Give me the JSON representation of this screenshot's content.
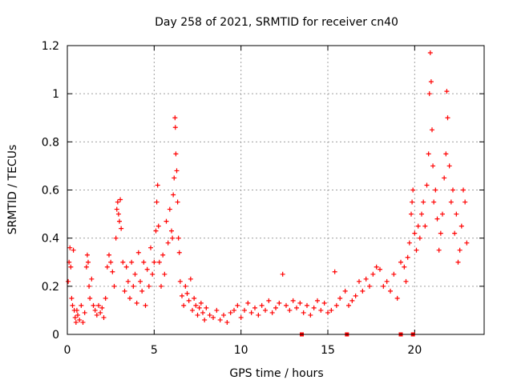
{
  "chart_data": {
    "type": "scatter",
    "title": "Day 258 of 2021, SRMTID for receiver cn40",
    "xlabel": "GPS time / hours",
    "ylabel": "SRMTID / TECUs",
    "xlim": [
      0,
      24
    ],
    "ylim": [
      0,
      1.2
    ],
    "grid": true,
    "legend": "none",
    "marker": "+",
    "x_ticks": [
      0,
      5,
      10,
      15,
      20
    ],
    "x_tick_labels": [
      "0",
      "5",
      "10",
      "15",
      "20"
    ],
    "y_ticks": [
      0,
      0.2,
      0.4,
      0.6,
      0.8,
      1,
      1.2
    ],
    "y_tick_labels": [
      "0",
      "0.2",
      "0.4",
      "0.6",
      "0.8",
      "1",
      "1.2"
    ],
    "series": [
      {
        "name": "SRMTID",
        "color": "#ff0000",
        "points": [
          [
            0.05,
            0.22
          ],
          [
            0.1,
            0.3
          ],
          [
            0.15,
            0.36
          ],
          [
            0.2,
            0.28
          ],
          [
            0.25,
            0.15
          ],
          [
            0.3,
            0.12
          ],
          [
            0.35,
            0.35
          ],
          [
            0.4,
            0.1
          ],
          [
            0.45,
            0.07
          ],
          [
            0.5,
            0.05
          ],
          [
            0.55,
            0.1
          ],
          [
            0.6,
            0.08
          ],
          [
            0.7,
            0.06
          ],
          [
            0.8,
            0.12
          ],
          [
            0.9,
            0.05
          ],
          [
            1.0,
            0.09
          ],
          [
            1.1,
            0.28
          ],
          [
            1.15,
            0.33
          ],
          [
            1.2,
            0.3
          ],
          [
            1.25,
            0.2
          ],
          [
            1.3,
            0.15
          ],
          [
            1.4,
            0.23
          ],
          [
            1.5,
            0.12
          ],
          [
            1.6,
            0.1
          ],
          [
            1.7,
            0.08
          ],
          [
            1.8,
            0.12
          ],
          [
            1.9,
            0.09
          ],
          [
            2.0,
            0.11
          ],
          [
            2.1,
            0.07
          ],
          [
            2.2,
            0.15
          ],
          [
            2.3,
            0.28
          ],
          [
            2.4,
            0.33
          ],
          [
            2.5,
            0.3
          ],
          [
            2.6,
            0.26
          ],
          [
            2.7,
            0.2
          ],
          [
            2.8,
            0.4
          ],
          [
            2.85,
            0.52
          ],
          [
            2.9,
            0.55
          ],
          [
            2.95,
            0.5
          ],
          [
            3.0,
            0.47
          ],
          [
            3.05,
            0.56
          ],
          [
            3.1,
            0.44
          ],
          [
            3.2,
            0.3
          ],
          [
            3.3,
            0.18
          ],
          [
            3.4,
            0.28
          ],
          [
            3.5,
            0.22
          ],
          [
            3.6,
            0.15
          ],
          [
            3.7,
            0.3
          ],
          [
            3.8,
            0.2
          ],
          [
            3.9,
            0.25
          ],
          [
            4.0,
            0.13
          ],
          [
            4.1,
            0.34
          ],
          [
            4.2,
            0.22
          ],
          [
            4.3,
            0.18
          ],
          [
            4.4,
            0.3
          ],
          [
            4.5,
            0.12
          ],
          [
            4.6,
            0.27
          ],
          [
            4.7,
            0.2
          ],
          [
            4.8,
            0.36
          ],
          [
            4.9,
            0.25
          ],
          [
            5.0,
            0.3
          ],
          [
            5.1,
            0.43
          ],
          [
            5.15,
            0.55
          ],
          [
            5.2,
            0.62
          ],
          [
            5.25,
            0.45
          ],
          [
            5.3,
            0.3
          ],
          [
            5.4,
            0.2
          ],
          [
            5.5,
            0.33
          ],
          [
            5.6,
            0.25
          ],
          [
            5.7,
            0.47
          ],
          [
            5.8,
            0.38
          ],
          [
            5.9,
            0.52
          ],
          [
            6.0,
            0.43
          ],
          [
            6.05,
            0.4
          ],
          [
            6.1,
            0.58
          ],
          [
            6.15,
            0.65
          ],
          [
            6.2,
            0.9
          ],
          [
            6.22,
            0.86
          ],
          [
            6.25,
            0.75
          ],
          [
            6.3,
            0.68
          ],
          [
            6.35,
            0.55
          ],
          [
            6.4,
            0.4
          ],
          [
            6.45,
            0.34
          ],
          [
            6.5,
            0.22
          ],
          [
            6.6,
            0.16
          ],
          [
            6.7,
            0.12
          ],
          [
            6.8,
            0.2
          ],
          [
            6.9,
            0.17
          ],
          [
            7.0,
            0.14
          ],
          [
            7.1,
            0.23
          ],
          [
            7.2,
            0.1
          ],
          [
            7.3,
            0.15
          ],
          [
            7.4,
            0.12
          ],
          [
            7.5,
            0.08
          ],
          [
            7.6,
            0.11
          ],
          [
            7.7,
            0.13
          ],
          [
            7.8,
            0.09
          ],
          [
            7.9,
            0.06
          ],
          [
            8.0,
            0.11
          ],
          [
            8.2,
            0.08
          ],
          [
            8.4,
            0.07
          ],
          [
            8.6,
            0.1
          ],
          [
            8.8,
            0.06
          ],
          [
            9.0,
            0.08
          ],
          [
            9.2,
            0.05
          ],
          [
            9.4,
            0.09
          ],
          [
            9.6,
            0.1
          ],
          [
            9.8,
            0.12
          ],
          [
            10.0,
            0.07
          ],
          [
            10.2,
            0.1
          ],
          [
            10.4,
            0.13
          ],
          [
            10.6,
            0.09
          ],
          [
            10.8,
            0.11
          ],
          [
            11.0,
            0.08
          ],
          [
            11.2,
            0.12
          ],
          [
            11.4,
            0.1
          ],
          [
            11.6,
            0.14
          ],
          [
            11.8,
            0.09
          ],
          [
            12.0,
            0.11
          ],
          [
            12.2,
            0.13
          ],
          [
            12.4,
            0.25
          ],
          [
            12.6,
            0.12
          ],
          [
            12.8,
            0.1
          ],
          [
            13.0,
            0.14
          ],
          [
            13.2,
            0.11
          ],
          [
            13.4,
            0.13
          ],
          [
            13.6,
            0.09
          ],
          [
            13.8,
            0.12
          ],
          [
            14.0,
            0.08
          ],
          [
            14.2,
            0.11
          ],
          [
            14.4,
            0.14
          ],
          [
            14.6,
            0.1
          ],
          [
            14.8,
            0.13
          ],
          [
            15.0,
            0.09
          ],
          [
            15.2,
            0.1
          ],
          [
            15.4,
            0.26
          ],
          [
            15.5,
            0.12
          ],
          [
            15.7,
            0.15
          ],
          [
            16.0,
            0.18
          ],
          [
            16.2,
            0.12
          ],
          [
            16.4,
            0.14
          ],
          [
            16.6,
            0.16
          ],
          [
            16.8,
            0.22
          ],
          [
            17.0,
            0.18
          ],
          [
            17.2,
            0.23
          ],
          [
            17.4,
            0.2
          ],
          [
            17.6,
            0.25
          ],
          [
            17.8,
            0.28
          ],
          [
            18.0,
            0.27
          ],
          [
            18.2,
            0.2
          ],
          [
            18.4,
            0.22
          ],
          [
            18.6,
            0.18
          ],
          [
            18.8,
            0.25
          ],
          [
            19.0,
            0.15
          ],
          [
            19.2,
            0.3
          ],
          [
            19.4,
            0.28
          ],
          [
            19.5,
            0.22
          ],
          [
            19.6,
            0.32
          ],
          [
            19.7,
            0.38
          ],
          [
            19.8,
            0.5
          ],
          [
            19.85,
            0.55
          ],
          [
            19.9,
            0.6
          ],
          [
            20.0,
            0.42
          ],
          [
            20.1,
            0.35
          ],
          [
            20.2,
            0.45
          ],
          [
            20.3,
            0.4
          ],
          [
            20.4,
            0.5
          ],
          [
            20.5,
            0.55
          ],
          [
            20.6,
            0.45
          ],
          [
            20.7,
            0.62
          ],
          [
            20.8,
            0.75
          ],
          [
            20.85,
            1.0
          ],
          [
            20.9,
            1.17
          ],
          [
            20.95,
            1.05
          ],
          [
            21.0,
            0.85
          ],
          [
            21.05,
            0.7
          ],
          [
            21.1,
            0.55
          ],
          [
            21.2,
            0.6
          ],
          [
            21.3,
            0.48
          ],
          [
            21.4,
            0.35
          ],
          [
            21.5,
            0.42
          ],
          [
            21.6,
            0.5
          ],
          [
            21.7,
            0.65
          ],
          [
            21.8,
            0.75
          ],
          [
            21.85,
            1.01
          ],
          [
            21.9,
            0.9
          ],
          [
            22.0,
            0.7
          ],
          [
            22.1,
            0.55
          ],
          [
            22.2,
            0.6
          ],
          [
            22.3,
            0.42
          ],
          [
            22.4,
            0.5
          ],
          [
            22.5,
            0.3
          ],
          [
            22.6,
            0.35
          ],
          [
            22.7,
            0.45
          ],
          [
            22.8,
            0.6
          ],
          [
            22.9,
            0.55
          ],
          [
            23.0,
            0.38
          ]
        ]
      }
    ],
    "baseline_markers": [
      13.5,
      16.1,
      19.2,
      19.9
    ]
  }
}
